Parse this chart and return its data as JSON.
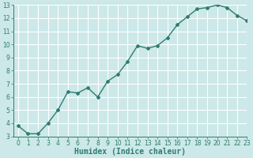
{
  "x": [
    0,
    1,
    2,
    3,
    4,
    5,
    6,
    7,
    8,
    9,
    10,
    11,
    12,
    13,
    14,
    15,
    16,
    17,
    18,
    19,
    20,
    21,
    22,
    23
  ],
  "y": [
    3.8,
    3.2,
    3.2,
    4.0,
    5.0,
    6.4,
    6.3,
    6.7,
    6.0,
    7.2,
    7.7,
    8.7,
    9.9,
    9.7,
    9.9,
    10.5,
    11.5,
    12.1,
    12.7,
    12.8,
    13.0,
    12.8,
    12.2,
    11.8
  ],
  "line_color": "#2e7d6e",
  "marker": "D",
  "marker_size": 2,
  "line_width": 1.0,
  "xlabel": "Humidex (Indice chaleur)",
  "ylim": [
    3,
    13
  ],
  "xlim": [
    -0.5,
    23
  ],
  "yticks": [
    3,
    4,
    5,
    6,
    7,
    8,
    9,
    10,
    11,
    12,
    13
  ],
  "xticks": [
    0,
    1,
    2,
    3,
    4,
    5,
    6,
    7,
    8,
    9,
    10,
    11,
    12,
    13,
    14,
    15,
    16,
    17,
    18,
    19,
    20,
    21,
    22,
    23
  ],
  "bg_color": "#cce8e8",
  "grid_color": "#ffffff",
  "tick_label_fontsize": 5.5,
  "xlabel_fontsize": 7,
  "axis_color": "#2e7d6e"
}
